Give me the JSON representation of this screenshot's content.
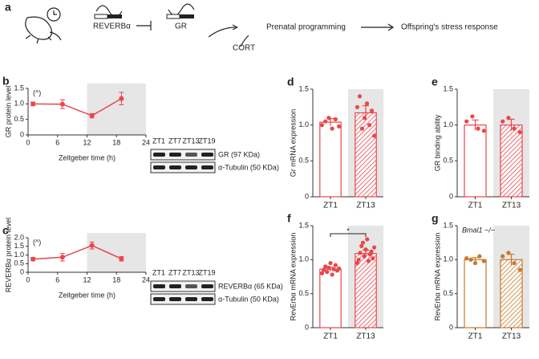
{
  "diagram": {
    "panel": "a",
    "nodes": [
      "REVERBα",
      "GR",
      "CORT",
      "Prenatal programming",
      "Offspring's stress response"
    ]
  },
  "chart_data": [
    {
      "panel": "b",
      "type": "line",
      "ylabel": "GR protein level",
      "xlabel": "Zeitgeber time (h)",
      "annotation": "(^)",
      "x": [
        1,
        7,
        13,
        19
      ],
      "values": [
        1.0,
        0.99,
        0.62,
        1.17
      ],
      "errors": [
        0.06,
        0.14,
        0.07,
        0.2
      ],
      "color": "#e8474b",
      "xlim": [
        0,
        24
      ],
      "xticks": [
        0,
        6,
        12,
        18,
        24
      ],
      "ylim": [
        0,
        1.5
      ],
      "yticks": [
        0,
        0.5,
        {
          "value": 1,
          "label": "1.0"
        },
        1.5
      ],
      "shaded_x": [
        12,
        24
      ],
      "blot": {
        "lanes": [
          "ZT1",
          "ZT7",
          "ZT13",
          "ZT19"
        ],
        "bands": [
          "GR (97 KDa)",
          "α-Tubulin (50 KDa)"
        ]
      }
    },
    {
      "panel": "c",
      "type": "line",
      "ylabel": "REVERBα protein level",
      "xlabel": "Zeitgeber time (h)",
      "annotation": "(^)",
      "x": [
        1,
        7,
        13,
        19
      ],
      "values": [
        0.76,
        0.87,
        1.55,
        0.78
      ],
      "errors": [
        0.1,
        0.22,
        0.2,
        0.13
      ],
      "color": "#e8474b",
      "xlim": [
        0,
        24
      ],
      "xticks": [
        0,
        6,
        12,
        18,
        24
      ],
      "ylim": [
        0,
        2
      ],
      "yticks": [
        0,
        0.5,
        {
          "value": 1,
          "label": "1.0"
        },
        1.5,
        {
          "value": 2,
          "label": "2.0"
        }
      ],
      "shaded_x": [
        12,
        24
      ],
      "blot": {
        "lanes": [
          "ZT1",
          "ZT7",
          "ZT13",
          "ZT19"
        ],
        "bands": [
          "REVERBα (65 KDa)",
          "α-Tubulin (50 KDa)"
        ]
      }
    },
    {
      "panel": "d",
      "type": "bar",
      "ylabel": "Gr mRNA expression",
      "categories": [
        "ZT1",
        "ZT13"
      ],
      "values": [
        1.04,
        1.17
      ],
      "errors": [
        0.05,
        0.1
      ],
      "points": [
        [
          1.0,
          1.05,
          1.1,
          0.95,
          1.08,
          0.98
        ],
        [
          1.25,
          1.4,
          0.95,
          1.1,
          1.3,
          1.0,
          1.2,
          0.85
        ]
      ],
      "color": "#e8474b",
      "ylim": [
        0,
        1.5
      ],
      "yticks": [
        0,
        0.5,
        {
          "value": 1,
          "label": "1.0"
        },
        1.5
      ],
      "shaded": true
    },
    {
      "panel": "e",
      "type": "bar",
      "ylabel": "GR binding ability",
      "categories": [
        "ZT1",
        "ZT13"
      ],
      "values": [
        1.0,
        1.0
      ],
      "errors": [
        0.07,
        0.08
      ],
      "points": [
        [
          1.05,
          1.12,
          0.95,
          0.92
        ],
        [
          1.05,
          1.1,
          0.95,
          0.9
        ]
      ],
      "color": "#e8474b",
      "ylim": [
        0,
        1.5
      ],
      "yticks": [
        0,
        0.5,
        {
          "value": 1,
          "label": "1.0"
        },
        1.5
      ],
      "shaded": true
    },
    {
      "panel": "f",
      "type": "bar",
      "ylabel": "RevErbα mRNA expression",
      "categories": [
        "ZT1",
        "ZT13"
      ],
      "values": [
        0.86,
        1.09
      ],
      "errors": [
        0.03,
        0.05
      ],
      "significance": "*",
      "points": [
        [
          0.8,
          0.85,
          0.9,
          0.82,
          0.88,
          0.95,
          0.78,
          0.86,
          0.92,
          0.84,
          0.87
        ],
        [
          0.95,
          1.0,
          1.1,
          1.2,
          1.25,
          1.05,
          1.15,
          1.3,
          0.98,
          1.08,
          1.12,
          1.02,
          1.18
        ]
      ],
      "color": "#e8474b",
      "ylim": [
        0,
        1.5
      ],
      "yticks": [
        0,
        0.5,
        {
          "value": 1,
          "label": "1.0"
        },
        1.5
      ],
      "shaded": true
    },
    {
      "panel": "g",
      "type": "bar",
      "ylabel": "RevErbα mRNA expression",
      "annotation": "Bmal1 −/−",
      "categories": [
        "ZT1",
        "ZT13"
      ],
      "values": [
        1.0,
        1.0
      ],
      "errors": [
        0.03,
        0.08
      ],
      "points": [
        [
          1.02,
          1.0,
          0.95,
          1.05,
          0.98
        ],
        [
          1.05,
          1.1,
          0.95,
          0.85
        ]
      ],
      "color": "#c8782a",
      "ylim": [
        0,
        1.5
      ],
      "yticks": [
        0,
        0.5,
        {
          "value": 1,
          "label": "1.0"
        },
        1.5
      ],
      "shaded": true
    }
  ]
}
